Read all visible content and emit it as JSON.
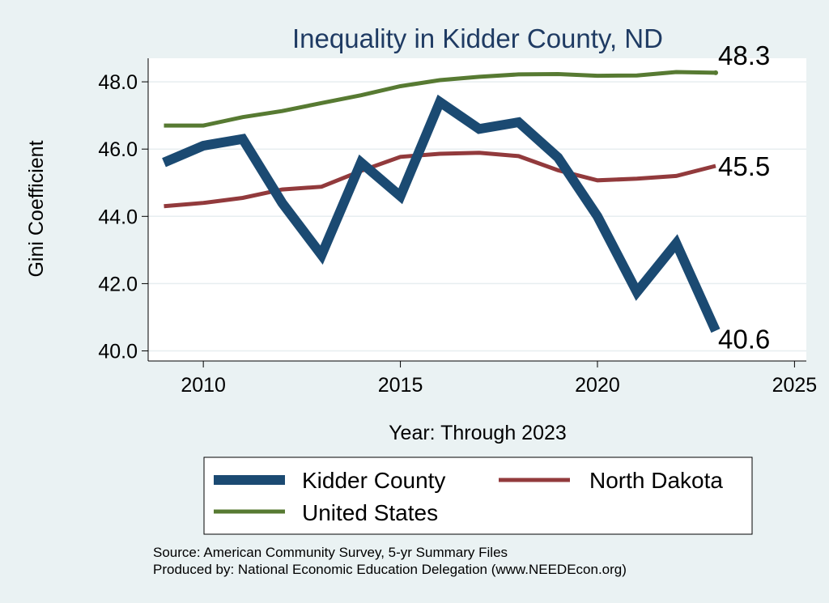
{
  "chart_data": {
    "type": "line",
    "title": "Inequality in Kidder County, ND",
    "xlabel": "Year: Through 2023",
    "ylabel": "Gini Coefficient",
    "xlim": [
      2008.6,
      2025.3
    ],
    "ylim": [
      39.7,
      48.7
    ],
    "x_ticks": [
      2010,
      2015,
      2020,
      2025
    ],
    "y_ticks": [
      40,
      42,
      44,
      46,
      48
    ],
    "x_tick_labels": [
      "2010",
      "2015",
      "2020",
      "2025"
    ],
    "y_tick_labels": [
      "40.0",
      "42.0",
      "44.0",
      "46.0",
      "48.0"
    ],
    "grid": true,
    "x": [
      2009,
      2010,
      2011,
      2012,
      2013,
      2014,
      2015,
      2016,
      2017,
      2018,
      2019,
      2020,
      2021,
      2022,
      2023
    ],
    "series": [
      {
        "name": "Kidder County",
        "color": "#1b4a72",
        "values": [
          45.6,
          46.1,
          46.3,
          44.4,
          42.85,
          45.6,
          44.6,
          47.4,
          46.6,
          46.8,
          45.75,
          44.0,
          41.75,
          43.2,
          40.6
        ],
        "end_label": "40.6"
      },
      {
        "name": "North Dakota",
        "color": "#923a3c",
        "values": [
          44.3,
          44.4,
          44.55,
          44.8,
          44.88,
          45.35,
          45.77,
          45.86,
          45.89,
          45.79,
          45.37,
          45.07,
          45.12,
          45.2,
          45.5
        ],
        "end_label": "45.5"
      },
      {
        "name": "United States",
        "color": "#577a32",
        "values": [
          46.7,
          46.7,
          46.95,
          47.13,
          47.37,
          47.6,
          47.87,
          48.05,
          48.15,
          48.22,
          48.23,
          48.18,
          48.19,
          48.29,
          48.27
        ],
        "end_label": "48.3"
      }
    ],
    "legend": {
      "position": "bottom",
      "entries": [
        "Kidder County",
        "North Dakota",
        "United States"
      ]
    },
    "source_lines": [
      "Source: American Community Survey, 5-yr Summary Files",
      "Produced by: National Economic Education Delegation (www.NEEDEcon.org)"
    ]
  }
}
